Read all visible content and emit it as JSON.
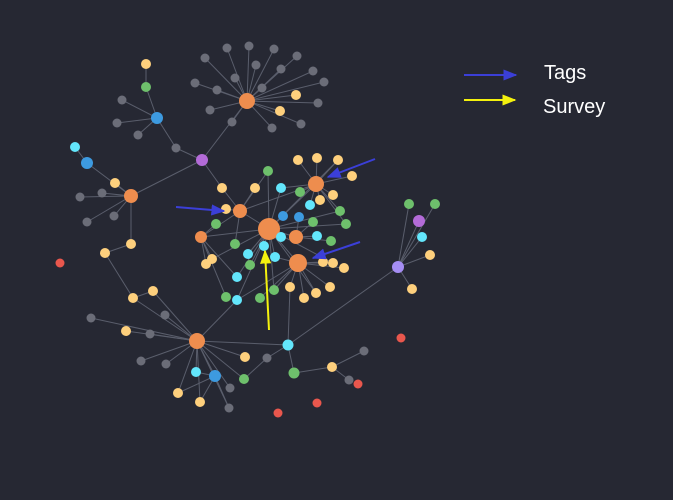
{
  "colors": {
    "background": "#262833",
    "edge": "#5a5e6c",
    "hub": "#ee8d4e",
    "tag": "#fed07d",
    "grey": "#6b6d78",
    "green": "#6ec06c",
    "cyan": "#63e6fc",
    "blue": "#3d9ae0",
    "purple": "#b36bd8",
    "lavender": "#a58df3",
    "red": "#e9574d",
    "arrow_blue": "#3b3fd8",
    "arrow_yellow": "#f4f10e"
  },
  "legend": {
    "items": [
      {
        "label": "Tags",
        "color": "arrow_blue"
      },
      {
        "label": "Survey",
        "color": "arrow_yellow"
      }
    ]
  }
}
